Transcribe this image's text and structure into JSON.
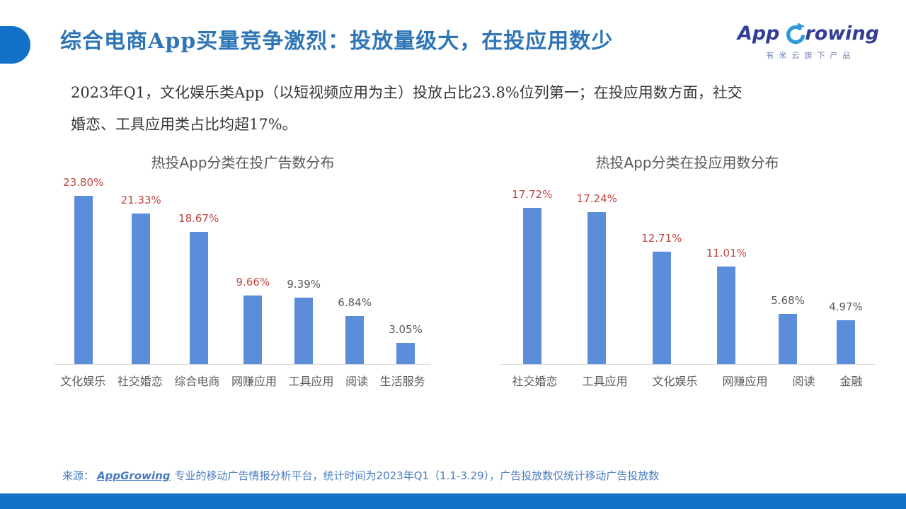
{
  "slide": {
    "title": "综合电商App买量竞争激烈：投放量级大，在投应用数少",
    "body_text": "2023年Q1，文化娱乐类App（以短视频应用为主）投放占比23.8%位列第一；在投应用数方面，社交婚恋、工具应用类占比均超17%。"
  },
  "logo": {
    "brand_part1": "App",
    "brand_part2": "rowing",
    "tagline": "有米云旗下产品"
  },
  "footer": {
    "prefix": "来源：",
    "link": "AppGrowing",
    "text": "专业的移动广告情报分析平台，统计时间为2023年Q1（1.1-3.29），广告投放数仅统计移动广告投放数"
  },
  "colors": {
    "accent_blue": "#1371C8",
    "title_blue": "#2E75B6",
    "bar_blue": "#5C8DDA",
    "value_label_red": "#BE4641",
    "value_label_gray": "#595959",
    "footer_blue": "#4A7BC0",
    "axis_line_gray": "#D9D9D9",
    "logo_navy": "#333D94",
    "logo_arrow_blue": "#2E9BD8"
  },
  "chart_data": [
    {
      "type": "bar",
      "title": "热投App分类在投广告数分布",
      "categories": [
        "文化娱乐",
        "社交婚恋",
        "综合电商",
        "网赚应用",
        "工具应用",
        "阅读",
        "生活服务"
      ],
      "values": [
        23.8,
        21.33,
        18.67,
        9.66,
        9.39,
        6.84,
        3.05
      ],
      "labels": [
        "23.80%",
        "21.33%",
        "18.67%",
        "9.66%",
        "9.39%",
        "6.84%",
        "3.05%"
      ],
      "label_colors": [
        "red",
        "red",
        "red",
        "red",
        "gray",
        "gray",
        "gray"
      ],
      "xlabel": "",
      "ylabel": "",
      "ylim": [
        0,
        25
      ],
      "grid": false,
      "legend": false,
      "unit": "%"
    },
    {
      "type": "bar",
      "title": "热投App分类在投应用数分布",
      "categories": [
        "社交婚恋",
        "工具应用",
        "文化娱乐",
        "网赚应用",
        "阅读",
        "金融"
      ],
      "values": [
        17.72,
        17.24,
        12.71,
        11.01,
        5.68,
        4.97
      ],
      "labels": [
        "17.72%",
        "17.24%",
        "12.71%",
        "11.01%",
        "5.68%",
        "4.97%"
      ],
      "label_colors": [
        "red",
        "red",
        "red",
        "red",
        "gray",
        "gray"
      ],
      "xlabel": "",
      "ylabel": "",
      "ylim": [
        0,
        20
      ],
      "grid": false,
      "legend": false,
      "unit": "%"
    }
  ]
}
